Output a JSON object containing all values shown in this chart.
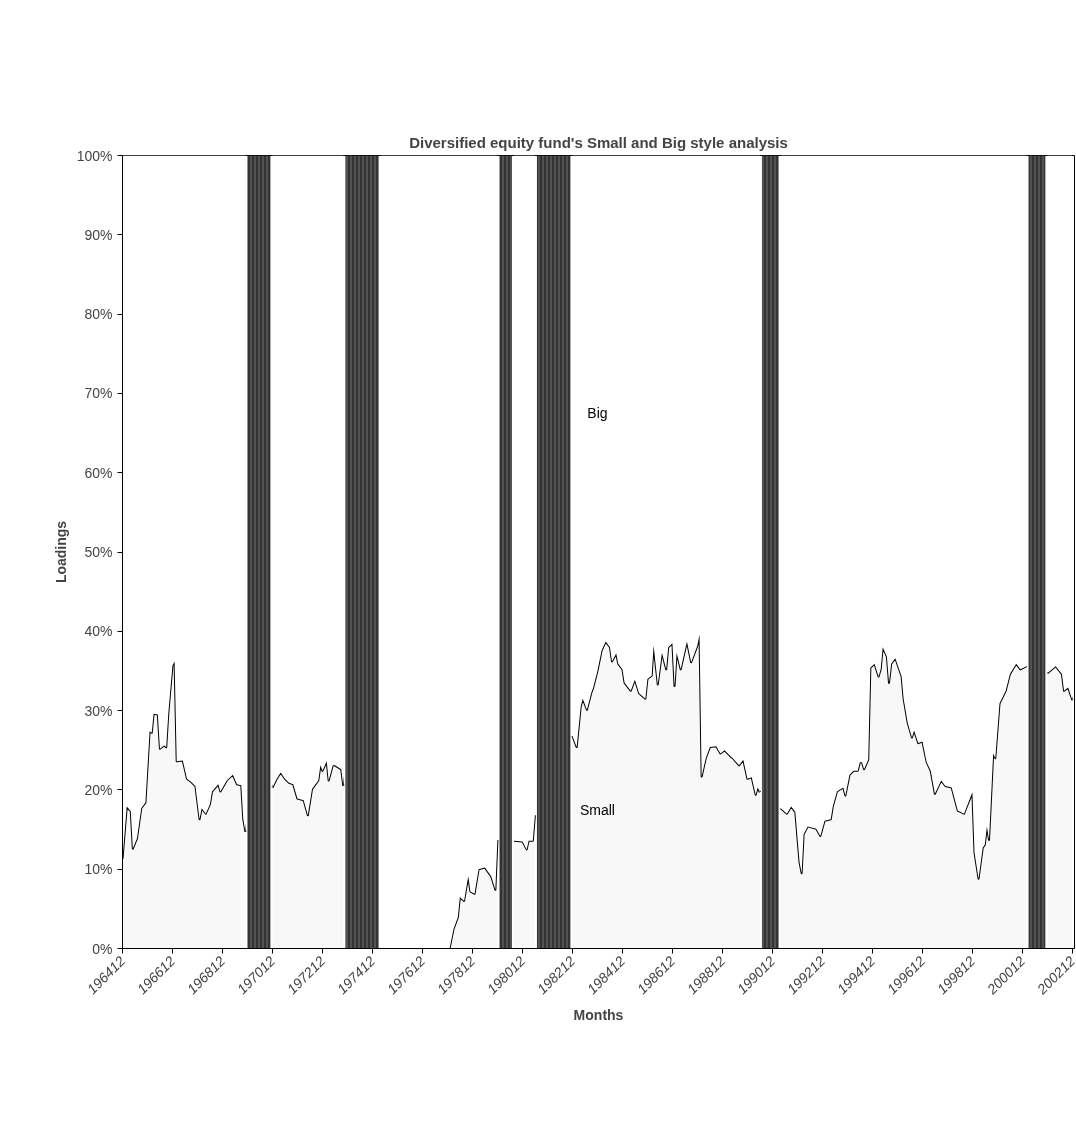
{
  "chart_data": {
    "type": "area",
    "stacked": true,
    "title": "Diversified equity fund's Small and Big style analysis",
    "xlabel": "Months",
    "ylabel": "Loadings",
    "x": [
      "1964-12",
      "1965-02",
      "1965-04",
      "1965-05",
      "1965-07",
      "1965-09",
      "1965-11",
      "1966-01",
      "1966-02",
      "1966-03",
      "1966-05",
      "1966-06",
      "1966-08",
      "1966-09",
      "1966-10",
      "1966-12",
      "1967-01",
      "1967-02",
      "1967-05",
      "1967-07",
      "1967-09",
      "1967-11",
      "1968-01",
      "1968-02",
      "1968-04",
      "1968-06",
      "1968-07",
      "1968-10",
      "1968-11",
      "1969-02",
      "1969-05",
      "1969-07",
      "1969-09",
      "1969-10",
      "1969-11",
      "1970-06",
      "1970-12",
      "1971-02",
      "1971-04",
      "1971-06",
      "1971-08",
      "1971-10",
      "1971-12",
      "1972-03",
      "1972-05",
      "1972-07",
      "1972-10",
      "1972-11",
      "1972-12",
      "1973-02",
      "1973-03",
      "1973-05",
      "1973-06",
      "1973-09",
      "1973-10",
      "1974-06",
      "1975-04",
      "1978-01",
      "1978-03",
      "1978-05",
      "1978-06",
      "1978-08",
      "1978-10",
      "1978-11",
      "1979-01",
      "1979-03",
      "1979-06",
      "1979-09",
      "1979-11",
      "1979-12",
      "1980-04",
      "1980-08",
      "1980-12",
      "1981-02",
      "1981-03",
      "1981-05",
      "1981-06",
      "1982-03",
      "1982-12",
      "1983-02",
      "1983-04",
      "1983-05",
      "1983-07",
      "1983-09",
      "1983-10",
      "1983-12",
      "1984-02",
      "1984-04",
      "1984-06",
      "1984-07",
      "1984-09",
      "1984-10",
      "1984-12",
      "1985-01",
      "1985-04",
      "1985-06",
      "1985-08",
      "1985-11",
      "1985-12",
      "1986-02",
      "1986-03",
      "1986-05",
      "1986-07",
      "1986-09",
      "1986-10",
      "1986-12",
      "1987-01",
      "1987-02",
      "1987-04",
      "1987-07",
      "1987-09",
      "1987-12",
      "1988-01",
      "1988-02",
      "1988-04",
      "1988-06",
      "1988-09",
      "1988-11",
      "1989-01",
      "1989-04",
      "1989-05",
      "1989-08",
      "1989-10",
      "1989-12",
      "1990-02",
      "1990-04",
      "1990-05",
      "1990-06",
      "1990-11",
      "1991-04",
      "1991-07",
      "1991-09",
      "1991-11",
      "1992-01",
      "1992-02",
      "1992-03",
      "1992-05",
      "1992-09",
      "1992-11",
      "1993-01",
      "1993-04",
      "1993-05",
      "1993-07",
      "1993-10",
      "1993-11",
      "1994-01",
      "1994-03",
      "1994-05",
      "1994-06",
      "1994-07",
      "1994-08",
      "1994-10",
      "1994-11",
      "1995-01",
      "1995-03",
      "1995-04",
      "1995-05",
      "1995-07",
      "1995-08",
      "1995-09",
      "1995-11",
      "1996-02",
      "1996-03",
      "1996-05",
      "1996-07",
      "1996-08",
      "1996-10",
      "1996-12",
      "1997-02",
      "1997-04",
      "1997-06",
      "1997-09",
      "1997-11",
      "1998-02",
      "1998-05",
      "1998-08",
      "1998-12",
      "1999-01",
      "1999-03",
      "1999-05",
      "1999-06",
      "1999-07",
      "1999-08",
      "1999-10",
      "1999-11",
      "2000-01",
      "2000-04",
      "2000-06",
      "2000-09",
      "2000-11",
      "2001-02",
      "2001-07",
      "2001-12",
      "2002-04",
      "2002-07",
      "2002-08",
      "2002-10",
      "2002-12"
    ],
    "series": [
      {
        "name": "Small",
        "color": "#f8f8f8",
        "values": [
          11.3,
          17.9,
          17.3,
          12.6,
          13.9,
          17.7,
          18.4,
          27.4,
          27.2,
          29.6,
          29.5,
          25.2,
          25.6,
          25.4,
          29.6,
          35.7,
          36.2,
          23.6,
          23.7,
          21.4,
          21.0,
          20.5,
          16.3,
          17.7,
          17.0,
          18.2,
          19.8,
          20.7,
          19.8,
          21.2,
          21.9,
          20.7,
          20.6,
          16.3,
          14.7,
          null,
          20.3,
          21.4,
          22.2,
          21.4,
          20.9,
          20.7,
          18.9,
          18.7,
          16.8,
          20.1,
          21.2,
          23.1,
          22.4,
          23.6,
          21.2,
          23.1,
          23.1,
          22.6,
          20.5,
          null,
          0,
          0,
          2.5,
          3.9,
          6.5,
          6.0,
          9.1,
          7.2,
          6.9,
          10.0,
          10.2,
          9.1,
          7.4,
          13.7,
          null,
          13.6,
          13.5,
          12.5,
          13.6,
          13.6,
          16.8,
          null,
          26.8,
          25.4,
          30.5,
          31.5,
          30.1,
          32.2,
          32.9,
          35.0,
          37.6,
          38.7,
          38.0,
          36.2,
          37.2,
          35.9,
          35.2,
          33.5,
          32.5,
          33.9,
          32.2,
          31.5,
          34.0,
          34.4,
          38.2,
          33.3,
          37.3,
          35.2,
          38.0,
          38.5,
          33.1,
          37.3,
          35.2,
          38.7,
          36.1,
          38.2,
          39.6,
          21.7,
          24.0,
          25.4,
          25.5,
          24.6,
          25.0,
          24.2,
          24.0,
          23.1,
          23.8,
          21.4,
          21.6,
          19.4,
          20.3,
          19.7,
          null,
          17.7,
          17.0,
          17.9,
          17.2,
          10.9,
          9.5,
          14.4,
          15.4,
          15.1,
          14.2,
          16.1,
          16.3,
          17.9,
          19.8,
          20.3,
          19.3,
          21.9,
          22.4,
          22.4,
          23.5,
          23.5,
          22.6,
          23.8,
          35.4,
          35.9,
          34.3,
          35.2,
          38.0,
          36.8,
          33.5,
          35.9,
          36.6,
          34.3,
          31.5,
          28.4,
          26.6,
          27.5,
          25.9,
          26.1,
          23.5,
          22.4,
          19.5,
          21.2,
          20.5,
          20.3,
          17.4,
          17.0,
          19.7,
          12.1,
          8.8,
          12.7,
          13.1,
          15.4,
          13.7,
          24.6,
          24.0,
          30.9,
          32.5,
          34.6,
          35.9,
          35.2,
          35.6,
          null,
          34.7,
          35.6,
          34.6,
          32.5,
          32.9,
          31.3
        ]
      },
      {
        "name": "Big",
        "color": "#ffffff",
        "values": [
          88.7,
          82.1,
          82.7,
          87.4,
          86.1,
          82.3,
          81.6,
          72.6,
          72.8,
          70.4,
          70.5,
          74.8,
          74.4,
          74.6,
          70.4,
          64.3,
          63.8,
          76.4,
          76.3,
          78.6,
          79.0,
          79.5,
          83.7,
          82.3,
          83.0,
          81.8,
          80.2,
          79.3,
          80.2,
          78.8,
          78.1,
          79.3,
          79.4,
          83.7,
          85.3,
          null,
          79.7,
          78.6,
          77.8,
          78.6,
          79.1,
          79.3,
          81.1,
          81.3,
          83.2,
          79.9,
          78.8,
          76.9,
          77.6,
          76.4,
          78.8,
          76.9,
          76.9,
          77.4,
          79.5,
          null,
          100,
          100,
          97.5,
          96.1,
          93.5,
          94.0,
          90.9,
          92.8,
          93.1,
          90.0,
          89.8,
          90.9,
          92.6,
          86.3,
          null,
          86.4,
          86.5,
          87.5,
          86.4,
          86.4,
          83.2,
          null,
          73.2,
          74.6,
          69.5,
          68.5,
          69.9,
          67.8,
          67.1,
          65.0,
          62.4,
          61.3,
          62.0,
          63.8,
          62.8,
          64.1,
          64.8,
          66.5,
          67.5,
          66.1,
          67.8,
          68.5,
          66.0,
          65.6,
          61.8,
          66.7,
          62.7,
          64.8,
          62.0,
          61.5,
          66.9,
          62.7,
          64.8,
          61.3,
          63.9,
          61.8,
          60.4,
          78.3,
          76.0,
          74.6,
          74.5,
          75.4,
          75.0,
          75.8,
          76.0,
          76.9,
          76.2,
          78.6,
          78.4,
          80.6,
          79.7,
          80.3,
          null,
          82.3,
          83.0,
          82.1,
          82.8,
          89.1,
          90.5,
          85.6,
          84.6,
          84.9,
          85.8,
          83.9,
          83.7,
          82.1,
          80.2,
          79.7,
          80.7,
          78.1,
          77.6,
          77.6,
          76.5,
          76.5,
          77.4,
          76.2,
          64.6,
          64.1,
          65.7,
          64.8,
          62.0,
          63.2,
          66.5,
          64.1,
          63.4,
          65.7,
          68.5,
          71.6,
          73.4,
          72.5,
          74.1,
          73.9,
          76.5,
          77.6,
          80.5,
          78.8,
          79.5,
          79.7,
          82.6,
          83.0,
          80.3,
          87.9,
          91.2,
          87.3,
          86.9,
          84.6,
          86.3,
          75.4,
          76.0,
          69.1,
          67.5,
          65.4,
          64.1,
          64.8,
          64.4,
          null,
          65.3,
          64.4,
          65.4,
          67.5,
          67.1,
          68.7
        ]
      }
    ],
    "xlim": [
      "1964-12",
      "2003-01"
    ],
    "xticks": [
      {
        "value": "1964-12",
        "label": "196412"
      },
      {
        "value": "1966-12",
        "label": "196612"
      },
      {
        "value": "1968-12",
        "label": "196812"
      },
      {
        "value": "1970-12",
        "label": "197012"
      },
      {
        "value": "1972-12",
        "label": "197212"
      },
      {
        "value": "1974-12",
        "label": "197412"
      },
      {
        "value": "1976-12",
        "label": "197612"
      },
      {
        "value": "1978-12",
        "label": "197812"
      },
      {
        "value": "1980-12",
        "label": "198012"
      },
      {
        "value": "1982-12",
        "label": "198212"
      },
      {
        "value": "1984-12",
        "label": "198412"
      },
      {
        "value": "1986-12",
        "label": "198612"
      },
      {
        "value": "1988-12",
        "label": "198812"
      },
      {
        "value": "1990-12",
        "label": "199012"
      },
      {
        "value": "1992-12",
        "label": "199212"
      },
      {
        "value": "1994-12",
        "label": "199412"
      },
      {
        "value": "1996-12",
        "label": "199612"
      },
      {
        "value": "1998-12",
        "label": "199812"
      },
      {
        "value": "2000-12",
        "label": "200012"
      },
      {
        "value": "2002-12",
        "label": "200212"
      }
    ],
    "ylim": [
      0,
      100
    ],
    "yticks": [
      {
        "value": 0,
        "label": "0%"
      },
      {
        "value": 10,
        "label": "10%"
      },
      {
        "value": 20,
        "label": "20%"
      },
      {
        "value": 30,
        "label": "30%"
      },
      {
        "value": 40,
        "label": "40%"
      },
      {
        "value": 50,
        "label": "50%"
      },
      {
        "value": 60,
        "label": "60%"
      },
      {
        "value": 70,
        "label": "70%"
      },
      {
        "value": 80,
        "label": "80%"
      },
      {
        "value": 90,
        "label": "90%"
      },
      {
        "value": 100,
        "label": "100%"
      }
    ],
    "bands": [
      {
        "axis": "x",
        "from": "1969-12",
        "to": "1970-11",
        "color": "#333333"
      },
      {
        "axis": "x",
        "from": "1973-11",
        "to": "1975-03",
        "color": "#333333"
      },
      {
        "axis": "x",
        "from": "1980-01",
        "to": "1980-07",
        "color": "#333333"
      },
      {
        "axis": "x",
        "from": "1981-07",
        "to": "1982-11",
        "color": "#333333"
      },
      {
        "axis": "x",
        "from": "1990-07",
        "to": "1991-03",
        "color": "#333333"
      },
      {
        "axis": "x",
        "from": "2001-03",
        "to": "2001-11",
        "color": "#333333"
      }
    ]
  }
}
